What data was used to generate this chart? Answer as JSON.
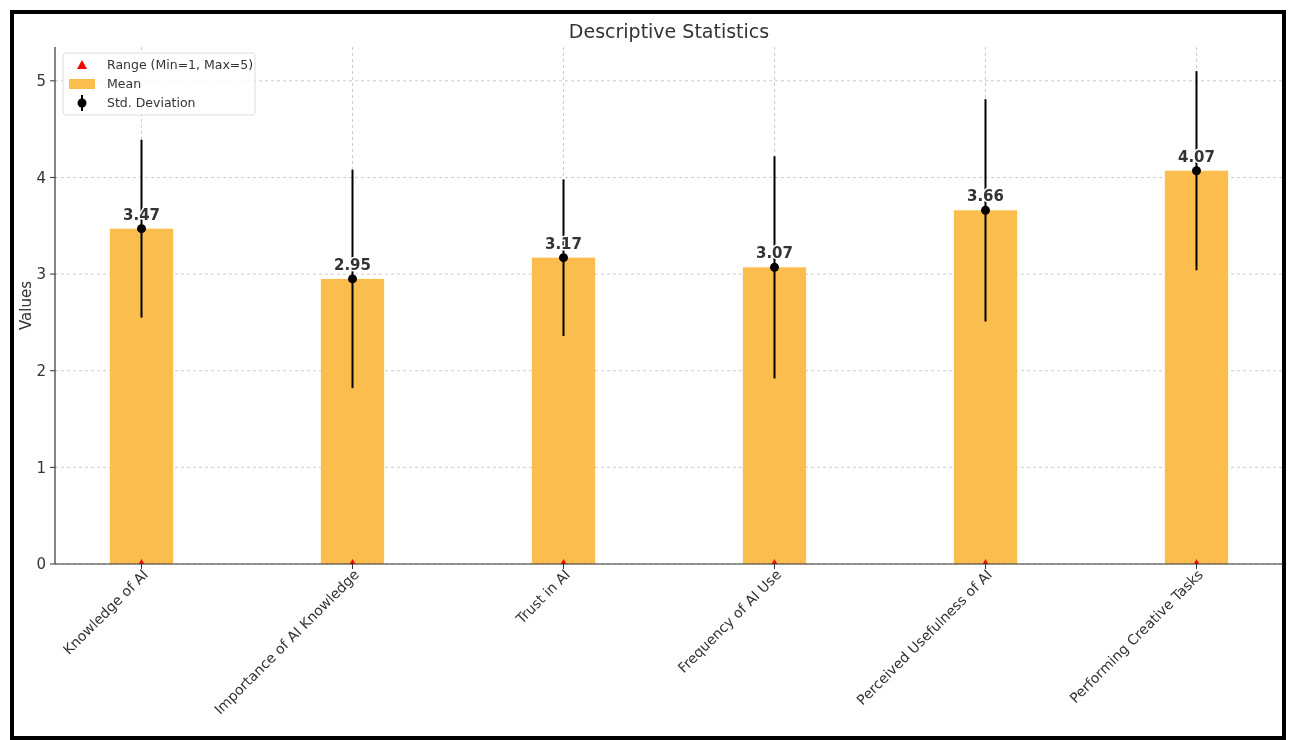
{
  "chart_data": {
    "type": "bar",
    "title": "Descriptive Statistics",
    "ylabel": "Values",
    "categories": [
      "Knowledge of AI",
      "Importance of AI Knowledge",
      "Trust in AI",
      "Frequency of AI Use",
      "Perceived Usefulness of AI",
      "Performing Creative Tasks"
    ],
    "series": [
      {
        "name": "Range (Min=1, Max=5)",
        "type": "scatter",
        "marker": "triangle",
        "color": "#ff0000",
        "values": [
          0,
          0,
          0,
          0,
          0,
          0
        ]
      },
      {
        "name": "Mean",
        "type": "bar",
        "color": "#fbbd4d",
        "values": [
          3.47,
          2.95,
          3.17,
          3.07,
          3.66,
          4.07
        ],
        "value_labels": [
          "3.47",
          "2.95",
          "3.17",
          "3.07",
          "3.66",
          "4.07"
        ]
      },
      {
        "name": "Std. Deviation",
        "type": "scatter",
        "marker": "circle",
        "color": "#000000",
        "values": [
          3.47,
          2.95,
          3.17,
          3.07,
          3.66,
          4.07
        ],
        "errors": [
          0.92,
          1.13,
          0.81,
          1.15,
          1.15,
          1.03
        ]
      }
    ],
    "ylim": [
      0,
      5.35
    ],
    "yticks": [
      0,
      1,
      2,
      3,
      4,
      5
    ],
    "grid": true,
    "legend": "top left"
  }
}
